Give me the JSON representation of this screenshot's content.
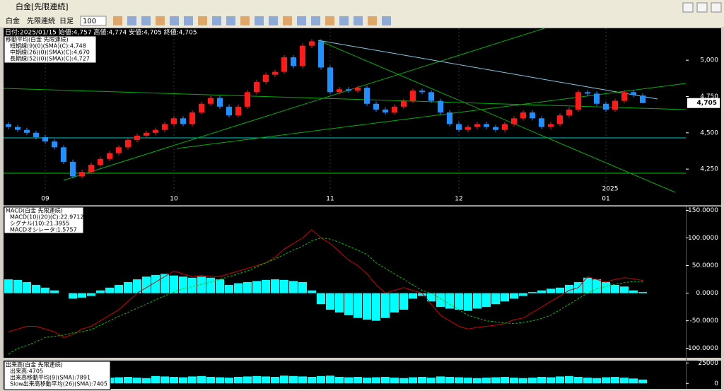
{
  "window": {
    "title": "白金[先限連続]"
  },
  "toolbar": {
    "items": [
      "白金",
      "先限連続",
      "日足"
    ],
    "count": "100"
  },
  "chart_data": [
    {
      "type": "candlestick",
      "info": "日付:2025/01/15 始値:4,757 高値:4,774 安値:4,705 終値:4,705",
      "legend": {
        "title": "移動平均(白金 先限連続)",
        "items": [
          "短期線(9)(0)(SMA)(C):4,748",
          "中期線(26)(0)(SMA)(C):4,670",
          "長期線(52)(0)(SMA)(C):4,727"
        ]
      },
      "categories": [
        null,
        null,
        null,
        null,
        "09",
        null,
        null,
        null,
        null,
        null,
        null,
        null,
        null,
        null,
        null,
        null,
        null,
        null,
        "10",
        null,
        null,
        null,
        null,
        null,
        null,
        null,
        null,
        null,
        null,
        null,
        null,
        null,
        null,
        null,
        null,
        "11",
        null,
        null,
        null,
        null,
        null,
        null,
        null,
        null,
        null,
        null,
        null,
        null,
        null,
        "12",
        null,
        null,
        null,
        null,
        null,
        null,
        null,
        null,
        null,
        null,
        null,
        null,
        null,
        null,
        null,
        "01",
        null,
        null,
        null,
        null
      ],
      "year_label": "2025",
      "candles": [
        [
          4560,
          4575,
          4525,
          4540
        ],
        [
          4540,
          4555,
          4505,
          4520
        ],
        [
          4520,
          4535,
          4485,
          4500
        ],
        [
          4500,
          4515,
          4455,
          4470
        ],
        [
          4470,
          4485,
          4425,
          4440
        ],
        [
          4440,
          4455,
          4385,
          4400
        ],
        [
          4400,
          4415,
          4285,
          4300
        ],
        [
          4300,
          4315,
          4185,
          4200
        ],
        [
          4200,
          4245,
          4185,
          4230
        ],
        [
          4230,
          4295,
          4215,
          4280
        ],
        [
          4280,
          4335,
          4265,
          4320
        ],
        [
          4320,
          4375,
          4305,
          4360
        ],
        [
          4360,
          4415,
          4345,
          4400
        ],
        [
          4400,
          4465,
          4385,
          4450
        ],
        [
          4450,
          4495,
          4435,
          4480
        ],
        [
          4480,
          4515,
          4465,
          4500
        ],
        [
          4500,
          4535,
          4485,
          4520
        ],
        [
          4520,
          4575,
          4505,
          4560
        ],
        [
          4560,
          4615,
          4545,
          4600
        ],
        [
          4600,
          4615,
          4545,
          4560
        ],
        [
          4560,
          4655,
          4545,
          4640
        ],
        [
          4640,
          4715,
          4625,
          4700
        ],
        [
          4700,
          4755,
          4685,
          4740
        ],
        [
          4740,
          4755,
          4665,
          4680
        ],
        [
          4680,
          4695,
          4605,
          4620
        ],
        [
          4620,
          4695,
          4605,
          4680
        ],
        [
          4680,
          4795,
          4665,
          4780
        ],
        [
          4780,
          4865,
          4765,
          4850
        ],
        [
          4850,
          4915,
          4835,
          4900
        ],
        [
          4900,
          4935,
          4885,
          4920
        ],
        [
          4920,
          5035,
          4905,
          5020
        ],
        [
          5020,
          5035,
          4945,
          4960
        ],
        [
          4960,
          5115,
          4945,
          5100
        ],
        [
          5100,
          5145,
          5085,
          5130
        ],
        [
          5130,
          5145,
          4935,
          4950
        ],
        [
          4950,
          4965,
          4765,
          4780
        ],
        [
          4780,
          4815,
          4765,
          4800
        ],
        [
          4800,
          4815,
          4775,
          4790
        ],
        [
          4790,
          4825,
          4775,
          4810
        ],
        [
          4810,
          4825,
          4685,
          4700
        ],
        [
          4700,
          4715,
          4645,
          4660
        ],
        [
          4660,
          4675,
          4625,
          4640
        ],
        [
          4640,
          4695,
          4625,
          4680
        ],
        [
          4680,
          4735,
          4665,
          4720
        ],
        [
          4720,
          4805,
          4705,
          4790
        ],
        [
          4790,
          4805,
          4765,
          4780
        ],
        [
          4780,
          4795,
          4705,
          4720
        ],
        [
          4720,
          4735,
          4625,
          4640
        ],
        [
          4640,
          4655,
          4545,
          4560
        ],
        [
          4560,
          4575,
          4505,
          4520
        ],
        [
          4520,
          4555,
          4505,
          4540
        ],
        [
          4540,
          4575,
          4525,
          4560
        ],
        [
          4560,
          4575,
          4525,
          4540
        ],
        [
          4540,
          4555,
          4505,
          4520
        ],
        [
          4520,
          4575,
          4505,
          4560
        ],
        [
          4560,
          4615,
          4545,
          4600
        ],
        [
          4600,
          4655,
          4585,
          4640
        ],
        [
          4640,
          4655,
          4585,
          4600
        ],
        [
          4600,
          4615,
          4525,
          4540
        ],
        [
          4540,
          4575,
          4525,
          4560
        ],
        [
          4560,
          4635,
          4545,
          4620
        ],
        [
          4620,
          4675,
          4605,
          4660
        ],
        [
          4660,
          4795,
          4645,
          4780
        ],
        [
          4780,
          4795,
          4755,
          4770
        ],
        [
          4770,
          4785,
          4685,
          4700
        ],
        [
          4700,
          4715,
          4645,
          4660
        ],
        [
          4660,
          4735,
          4645,
          4720
        ],
        [
          4720,
          4795,
          4705,
          4780
        ],
        [
          4780,
          4795,
          4745,
          4760
        ],
        [
          4757,
          4774,
          4705,
          4705
        ]
      ],
      "up_color": "#ff1a1a",
      "down_color": "#1e90ff",
      "ylim": [
        4090,
        5220
      ],
      "yticks": [
        {
          "value": 4250,
          "label": "4,250"
        },
        {
          "value": 4500,
          "label": "4,500"
        },
        {
          "value": 4750,
          "label": "4,750"
        },
        {
          "value": 5000,
          "label": "5,000"
        }
      ],
      "last_label": {
        "value": 4705,
        "label": "4,705"
      }
    },
    {
      "type": "macd",
      "legend": {
        "title": "MACD(白金 先限連続)",
        "items": [
          "MACD(10)(20)(C):22.9712",
          "シグナル(10):21.3955",
          "MACDオシレータ:1.5757"
        ]
      },
      "histogram": [
        25,
        24,
        20,
        15,
        10,
        5,
        0,
        -10,
        -8,
        -5,
        5,
        10,
        15,
        20,
        25,
        30,
        33,
        35,
        32,
        30,
        28,
        30,
        28,
        25,
        15,
        18,
        20,
        22,
        24,
        25,
        24,
        22,
        20,
        5,
        -20,
        -30,
        -35,
        -40,
        -45,
        -48,
        -50,
        -45,
        -35,
        -30,
        -10,
        -5,
        -15,
        -25,
        -28,
        -30,
        -32,
        -28,
        -25,
        -20,
        -15,
        -10,
        -5,
        2,
        5,
        8,
        10,
        15,
        20,
        28,
        25,
        20,
        15,
        12,
        5,
        2
      ],
      "macd": [
        -70,
        -65,
        -60,
        -60,
        -65,
        -70,
        -80,
        -75,
        -65,
        -60,
        -50,
        -40,
        -30,
        -15,
        0,
        10,
        20,
        30,
        40,
        35,
        30,
        32,
        30,
        30,
        35,
        40,
        45,
        50,
        55,
        65,
        80,
        90,
        100,
        115,
        100,
        90,
        75,
        60,
        50,
        35,
        15,
        0,
        5,
        10,
        5,
        0,
        -20,
        -40,
        -50,
        -60,
        -65,
        -62,
        -60,
        -58,
        -55,
        -48,
        -45,
        -35,
        -25,
        -15,
        -5,
        5,
        10,
        30,
        25,
        20,
        25,
        28,
        26,
        23
      ],
      "signal": [
        -110,
        -100,
        -95,
        -88,
        -80,
        -78,
        -76,
        -72,
        -70,
        -66,
        -58,
        -50,
        -42,
        -35,
        -27,
        -20,
        -12,
        -5,
        2,
        8,
        12,
        16,
        20,
        25,
        30,
        35,
        40,
        48,
        55,
        62,
        70,
        78,
        85,
        95,
        100,
        98,
        92,
        85,
        78,
        70,
        55,
        45,
        35,
        25,
        15,
        5,
        0,
        -10,
        -20,
        -30,
        -40,
        -45,
        -50,
        -52,
        -54,
        -55,
        -53,
        -50,
        -46,
        -40,
        -30,
        -20,
        -10,
        0,
        8,
        12,
        16,
        19,
        21,
        21
      ],
      "colors": {
        "histogram": "#00ffff",
        "macd": "#d00000",
        "signal": "#00c000"
      },
      "ylim": [
        -117,
        157
      ],
      "yticks": [
        {
          "value": 150,
          "label": "150.0000"
        },
        {
          "value": 100,
          "label": "100.0000"
        },
        {
          "value": 50,
          "label": "50.0000"
        },
        {
          "value": 0,
          "label": "0.0000"
        },
        {
          "value": -50,
          "label": "-50.0000"
        },
        {
          "value": -100,
          "label": "-100.0000"
        }
      ]
    },
    {
      "type": "volume",
      "legend": {
        "title": "出来高(白金 先限連続)",
        "items": [
          "出来高:4705",
          "出来高移動平均(9)(SMA):7891",
          "Slow出来高移動平均(26)(SMA):7405"
        ]
      },
      "values": [
        8000,
        7500,
        6500,
        7000,
        9000,
        8500,
        9500,
        8000,
        7500,
        7000,
        6500,
        7000,
        7500,
        8000,
        7000,
        6500,
        9000,
        8500,
        8000,
        7500,
        8500,
        9000,
        8000,
        7500,
        7000,
        8000,
        8500,
        9000,
        8500,
        8000,
        9500,
        9000,
        8500,
        8000,
        9000,
        9500,
        8000,
        7500,
        8000,
        7000,
        7500,
        8000,
        7000,
        6500,
        7500,
        8000,
        7000,
        8500,
        8000,
        7500,
        7000,
        6500,
        7000,
        7500,
        8000,
        7000,
        6500,
        7000,
        8000,
        7500,
        8500,
        9000,
        8000,
        7000,
        6500,
        7500,
        8000,
        7000,
        6000,
        4705
      ],
      "color": "#00ffff",
      "ylim": [
        -6700,
        27900
      ],
      "yticks": [
        0,
        25000
      ]
    }
  ]
}
